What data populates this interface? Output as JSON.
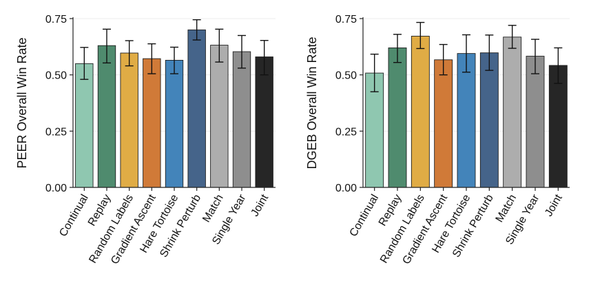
{
  "chart_data": [
    {
      "type": "bar",
      "title": "",
      "xlabel": "",
      "ylabel": "PEER Overall Win Rate",
      "ylim": [
        0,
        0.75
      ],
      "yticks": [
        "0.00",
        "0.25",
        "0.50",
        "0.75"
      ],
      "grid": true,
      "categories": [
        "Continual",
        "Replay",
        "Random Labels",
        "Gradient Ascent",
        "Hare Tortoise",
        "Shrink Perturb",
        "Match",
        "Single Year",
        "Joint"
      ],
      "values": [
        0.55,
        0.63,
        0.597,
        0.572,
        0.565,
        0.7,
        0.632,
        0.603,
        0.58
      ],
      "error_low": [
        0.48,
        0.553,
        0.54,
        0.505,
        0.505,
        0.655,
        0.557,
        0.53,
        0.5
      ],
      "error_high": [
        0.622,
        0.703,
        0.652,
        0.638,
        0.623,
        0.745,
        0.703,
        0.675,
        0.653
      ],
      "colors": [
        "#8fc7b0",
        "#4f8b6e",
        "#e0ac45",
        "#d07a38",
        "#4384ba",
        "#45648a",
        "#adadad",
        "#8e8e8e",
        "#262626"
      ]
    },
    {
      "type": "bar",
      "title": "",
      "xlabel": "",
      "ylabel": "DGEB Overall Win Rate",
      "ylim": [
        0,
        0.75
      ],
      "yticks": [
        "0.00",
        "0.25",
        "0.50",
        "0.75"
      ],
      "grid": true,
      "categories": [
        "Continual",
        "Replay",
        "Random Labels",
        "Gradient Ascent",
        "Hare Tortoise",
        "Shrink Perturb",
        "Match",
        "Single Year",
        "Joint"
      ],
      "values": [
        0.508,
        0.62,
        0.672,
        0.567,
        0.595,
        0.598,
        0.668,
        0.583,
        0.542
      ],
      "error_low": [
        0.425,
        0.555,
        0.617,
        0.5,
        0.512,
        0.52,
        0.618,
        0.505,
        0.462
      ],
      "error_high": [
        0.592,
        0.68,
        0.733,
        0.635,
        0.678,
        0.677,
        0.72,
        0.658,
        0.62
      ],
      "colors": [
        "#8fc7b0",
        "#4f8b6e",
        "#e0ac45",
        "#d07a38",
        "#4384ba",
        "#45648a",
        "#adadad",
        "#8e8e8e",
        "#262626"
      ]
    }
  ]
}
